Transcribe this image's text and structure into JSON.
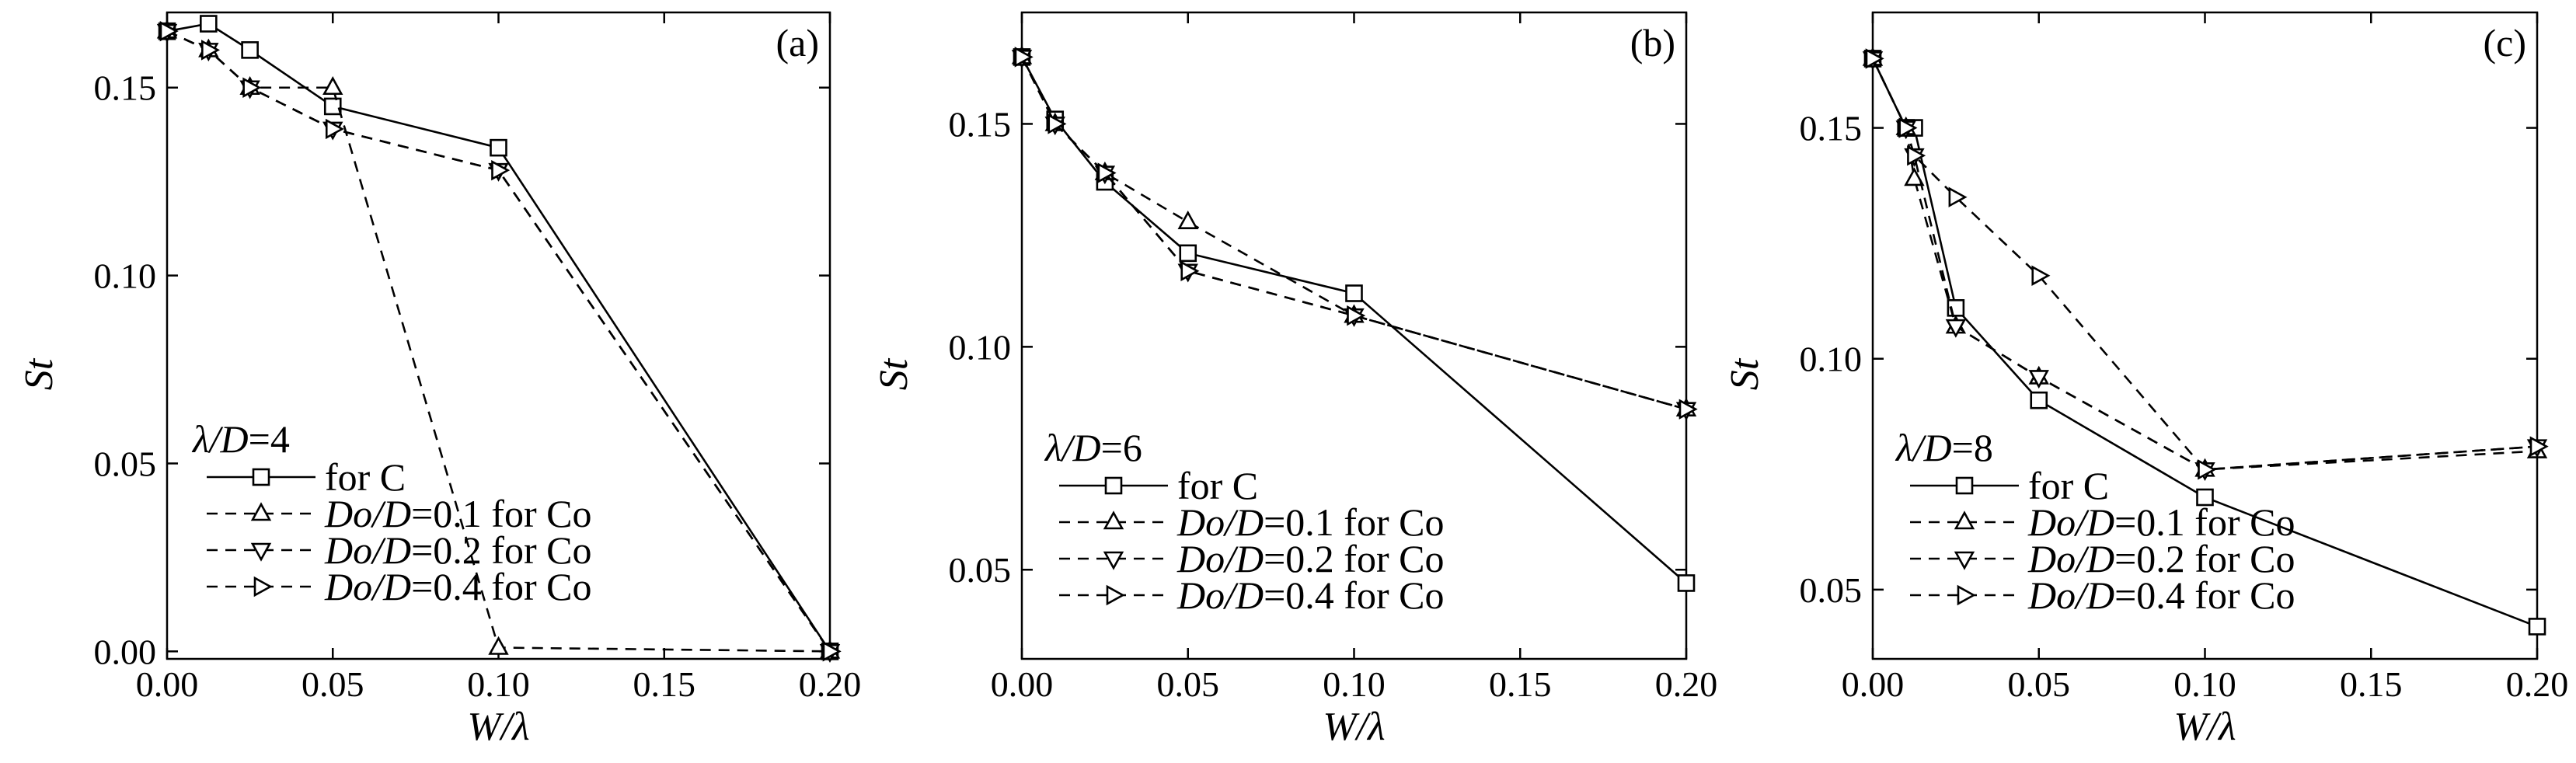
{
  "chart_data": [
    {
      "type": "line",
      "panel_label": "(a)",
      "xlabel": "W/λ",
      "ylabel": "St",
      "xlim": [
        0,
        0.2
      ],
      "ylim": [
        -0.002,
        0.17
      ],
      "xticks": [
        0.0,
        0.05,
        0.1,
        0.15,
        0.2
      ],
      "xtick_labels": [
        "0.00",
        "0.05",
        "0.10",
        "0.15",
        "0.20"
      ],
      "yticks": [
        0.0,
        0.05,
        0.1,
        0.15
      ],
      "ytick_labels": [
        "0.00",
        "0.05",
        "0.10",
        "0.15"
      ],
      "legend_title": "λ/D=4",
      "legend_position": "bottom-left",
      "series": [
        {
          "name": "for C",
          "legend": {
            "pre": "",
            "it": "",
            "post": "for C"
          },
          "marker": "square",
          "style": "solid",
          "x": [
            0,
            0.0125,
            0.025,
            0.05,
            0.1,
            0.2
          ],
          "y": [
            0.165,
            0.167,
            0.16,
            0.145,
            0.134,
            0.0
          ]
        },
        {
          "name": "Do/D=0.1 for Co",
          "legend": {
            "pre": "",
            "it": "Do/D",
            "post": "=0.1 for Co"
          },
          "marker": "triangle-up",
          "style": "dashed",
          "x": [
            0,
            0.0125,
            0.025,
            0.05,
            0.1,
            0.2
          ],
          "y": [
            0.165,
            0.16,
            0.15,
            0.15,
            0.001,
            0.0
          ]
        },
        {
          "name": "Do/D=0.2 for Co",
          "legend": {
            "pre": "",
            "it": "Do/D",
            "post": "=0.2 for Co"
          },
          "marker": "triangle-down",
          "style": "dashed",
          "x": [
            0,
            0.0125,
            0.025,
            0.05,
            0.1,
            0.2
          ],
          "y": [
            0.165,
            0.16,
            0.15,
            0.139,
            0.128,
            0.0
          ]
        },
        {
          "name": "Do/D=0.4 for Co",
          "legend": {
            "pre": "",
            "it": "Do/D",
            "post": "=0.4 for Co"
          },
          "marker": "triangle-right",
          "style": "dashed",
          "x": [
            0,
            0.0125,
            0.025,
            0.05,
            0.1,
            0.2
          ],
          "y": [
            0.165,
            0.16,
            0.15,
            0.139,
            0.128,
            0.0
          ]
        }
      ]
    },
    {
      "type": "line",
      "panel_label": "(b)",
      "xlabel": "W/λ",
      "ylabel": "St",
      "xlim": [
        0,
        0.2
      ],
      "ylim": [
        0.03,
        0.175
      ],
      "xticks": [
        0.0,
        0.05,
        0.1,
        0.15,
        0.2
      ],
      "xtick_labels": [
        "0.00",
        "0.05",
        "0.10",
        "0.15",
        "0.20"
      ],
      "yticks": [
        0.05,
        0.1,
        0.15
      ],
      "ytick_labels": [
        "0.05",
        "0.10",
        "0.15"
      ],
      "legend_title": "λ/D=6",
      "legend_position": "bottom-left",
      "series": [
        {
          "name": "for C",
          "legend": {
            "pre": "",
            "it": "",
            "post": "for C"
          },
          "marker": "square",
          "style": "solid",
          "x": [
            0,
            0.01,
            0.025,
            0.05,
            0.1,
            0.2
          ],
          "y": [
            0.165,
            0.151,
            0.137,
            0.121,
            0.112,
            0.047
          ]
        },
        {
          "name": "Do/D=0.1 for Co",
          "legend": {
            "pre": "",
            "it": "Do/D",
            "post": "=0.1 for Co"
          },
          "marker": "triangle-up",
          "style": "dashed",
          "x": [
            0,
            0.01,
            0.025,
            0.05,
            0.1,
            0.2
          ],
          "y": [
            0.165,
            0.15,
            0.139,
            0.128,
            0.107,
            0.086
          ]
        },
        {
          "name": "Do/D=0.2 for Co",
          "legend": {
            "pre": "",
            "it": "Do/D",
            "post": "=0.2 for Co"
          },
          "marker": "triangle-down",
          "style": "dashed",
          "x": [
            0,
            0.01,
            0.025,
            0.05,
            0.1,
            0.2
          ],
          "y": [
            0.165,
            0.15,
            0.139,
            0.117,
            0.107,
            0.086
          ]
        },
        {
          "name": "Do/D=0.4 for Co",
          "legend": {
            "pre": "",
            "it": "Do/D",
            "post": "=0.4 for Co"
          },
          "marker": "triangle-right",
          "style": "dashed",
          "x": [
            0,
            0.01,
            0.025,
            0.05,
            0.1,
            0.2
          ],
          "y": [
            0.165,
            0.15,
            0.139,
            0.117,
            0.107,
            0.086
          ]
        }
      ]
    },
    {
      "type": "line",
      "panel_label": "(c)",
      "xlabel": "W/λ",
      "ylabel": "St",
      "xlim": [
        0,
        0.2
      ],
      "ylim": [
        0.035,
        0.175
      ],
      "xticks": [
        0.0,
        0.05,
        0.1,
        0.15,
        0.2
      ],
      "xtick_labels": [
        "0.00",
        "0.05",
        "0.10",
        "0.15",
        "0.20"
      ],
      "yticks": [
        0.05,
        0.1,
        0.15
      ],
      "ytick_labels": [
        "0.05",
        "0.10",
        "0.15"
      ],
      "legend_title": "λ/D=8",
      "legend_position": "bottom-left",
      "series": [
        {
          "name": "for C",
          "legend": {
            "pre": "",
            "it": "",
            "post": "for C"
          },
          "marker": "square",
          "style": "solid",
          "x": [
            0,
            0.01,
            0.0125,
            0.025,
            0.05,
            0.1,
            0.2
          ],
          "y": [
            0.165,
            0.15,
            0.15,
            0.111,
            0.091,
            0.07,
            0.042
          ]
        },
        {
          "name": "Do/D=0.1 for Co",
          "legend": {
            "pre": "",
            "it": "Do/D",
            "post": "=0.1 for Co"
          },
          "marker": "triangle-up",
          "style": "dashed",
          "x": [
            0,
            0.01,
            0.0125,
            0.025,
            0.05,
            0.1,
            0.2
          ],
          "y": [
            0.165,
            0.15,
            0.139,
            0.107,
            0.096,
            0.076,
            0.08
          ]
        },
        {
          "name": "Do/D=0.2 for Co",
          "legend": {
            "pre": "",
            "it": "Do/D",
            "post": "=0.2 for Co"
          },
          "marker": "triangle-down",
          "style": "dashed",
          "x": [
            0,
            0.01,
            0.0125,
            0.025,
            0.05,
            0.1,
            0.2
          ],
          "y": [
            0.165,
            0.15,
            0.144,
            0.107,
            0.096,
            0.076,
            0.081
          ]
        },
        {
          "name": "Do/D=0.4 for Co",
          "legend": {
            "pre": "",
            "it": "Do/D",
            "post": "=0.4 for Co"
          },
          "marker": "triangle-right",
          "style": "dashed",
          "x": [
            0,
            0.01,
            0.0125,
            0.025,
            0.05,
            0.1,
            0.2
          ],
          "y": [
            0.165,
            0.15,
            0.144,
            0.135,
            0.118,
            0.076,
            0.081
          ]
        }
      ]
    }
  ]
}
